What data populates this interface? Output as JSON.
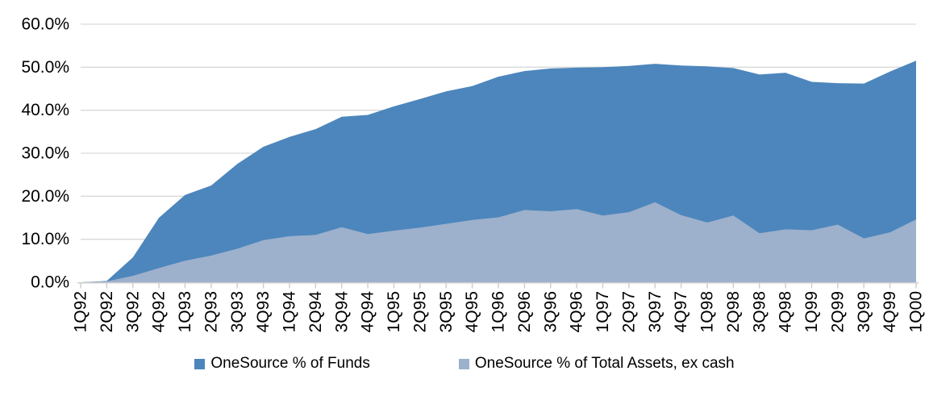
{
  "chart_data": {
    "type": "area",
    "mode": "overlapping",
    "categories": [
      "1Q92",
      "2Q92",
      "3Q92",
      "4Q92",
      "1Q93",
      "2Q93",
      "3Q93",
      "4Q93",
      "1Q94",
      "2Q94",
      "3Q94",
      "4Q94",
      "1Q95",
      "2Q95",
      "3Q95",
      "4Q95",
      "1Q96",
      "2Q96",
      "3Q96",
      "4Q96",
      "1Q97",
      "2Q97",
      "3Q97",
      "4Q97",
      "1Q98",
      "2Q98",
      "3Q98",
      "4Q98",
      "1Q99",
      "2Q99",
      "3Q99",
      "4Q99",
      "1Q00"
    ],
    "series": [
      {
        "name": "OneSource % of Funds",
        "color": "#4C86BC",
        "values": [
          0.0,
          0.3,
          5.8,
          15.0,
          20.3,
          22.5,
          27.5,
          31.5,
          33.8,
          35.6,
          38.5,
          38.9,
          40.9,
          42.6,
          44.4,
          45.6,
          47.8,
          49.1,
          49.7,
          49.9,
          50.0,
          50.3,
          50.8,
          50.4,
          50.2,
          49.8,
          48.3,
          48.7,
          46.6,
          46.3,
          46.2,
          49.0,
          51.5
        ]
      },
      {
        "name": "OneSource % of Total Assets, ex cash",
        "color": "#9DB0CC",
        "values": [
          0.0,
          0.2,
          1.5,
          3.3,
          5.0,
          6.2,
          7.8,
          9.8,
          10.7,
          11.0,
          12.8,
          11.2,
          12.0,
          12.7,
          13.6,
          14.5,
          15.1,
          16.8,
          16.5,
          17.0,
          15.5,
          16.3,
          18.6,
          15.6,
          13.9,
          15.5,
          11.4,
          12.3,
          12.1,
          13.4,
          10.2,
          11.6,
          14.6
        ]
      }
    ],
    "ylim": [
      0,
      60
    ],
    "y_tick_labels": [
      "0.0%",
      "10.0%",
      "20.0%",
      "30.0%",
      "40.0%",
      "50.0%",
      "60.0%"
    ],
    "grid": true,
    "grid_color": "#D9D9D9",
    "axis_color": "#CFCFCF",
    "text_color": "#000000",
    "legend_position": "bottom"
  }
}
